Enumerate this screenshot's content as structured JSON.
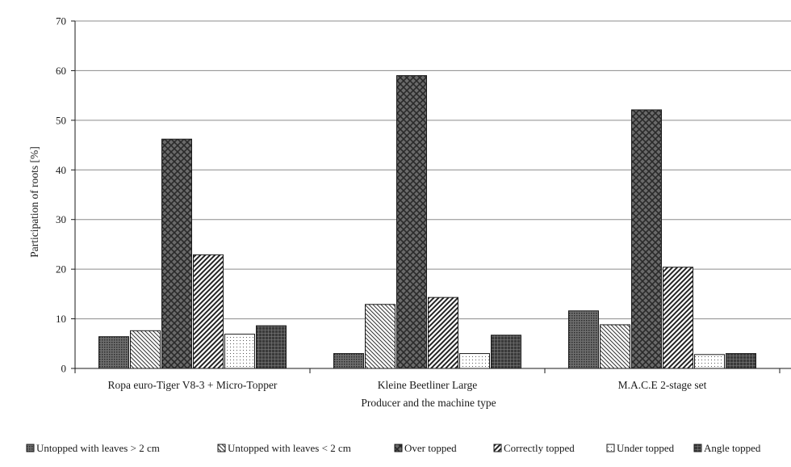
{
  "chart_data": {
    "type": "bar",
    "xlabel": "Producer and the machine type",
    "ylabel": "Participation of roots [%]",
    "ylim": [
      0,
      70
    ],
    "yticks": [
      0,
      10,
      20,
      30,
      40,
      50,
      60,
      70
    ],
    "grid": true,
    "legend_position": "bottom",
    "categories": [
      "Ropa euro-Tiger V8-3 + Micro-Topper",
      "Kleine Beetliner Large",
      "M.A.C.E 2-stage set"
    ],
    "series": [
      {
        "name": "Untopped with leaves > 2 cm",
        "pattern": "dots-dense",
        "values": [
          6.4,
          3.0,
          11.6
        ]
      },
      {
        "name": "Untopped with leaves < 2 cm",
        "pattern": "backslash",
        "values": [
          7.6,
          12.9,
          8.8
        ]
      },
      {
        "name": "Over topped",
        "pattern": "crosshatch",
        "values": [
          46.2,
          59.0,
          52.1
        ]
      },
      {
        "name": "Correctly topped",
        "pattern": "slash",
        "values": [
          22.9,
          14.3,
          20.4
        ]
      },
      {
        "name": "Under topped",
        "pattern": "dots-light",
        "values": [
          6.9,
          3.0,
          2.8
        ]
      },
      {
        "name": "Angle topped",
        "pattern": "grid-dark",
        "values": [
          8.6,
          6.7,
          3.0
        ]
      }
    ],
    "colors": {
      "stroke": "#1a1a1a",
      "grid": "#8c8c8c",
      "fill_dark": "#555555"
    }
  }
}
